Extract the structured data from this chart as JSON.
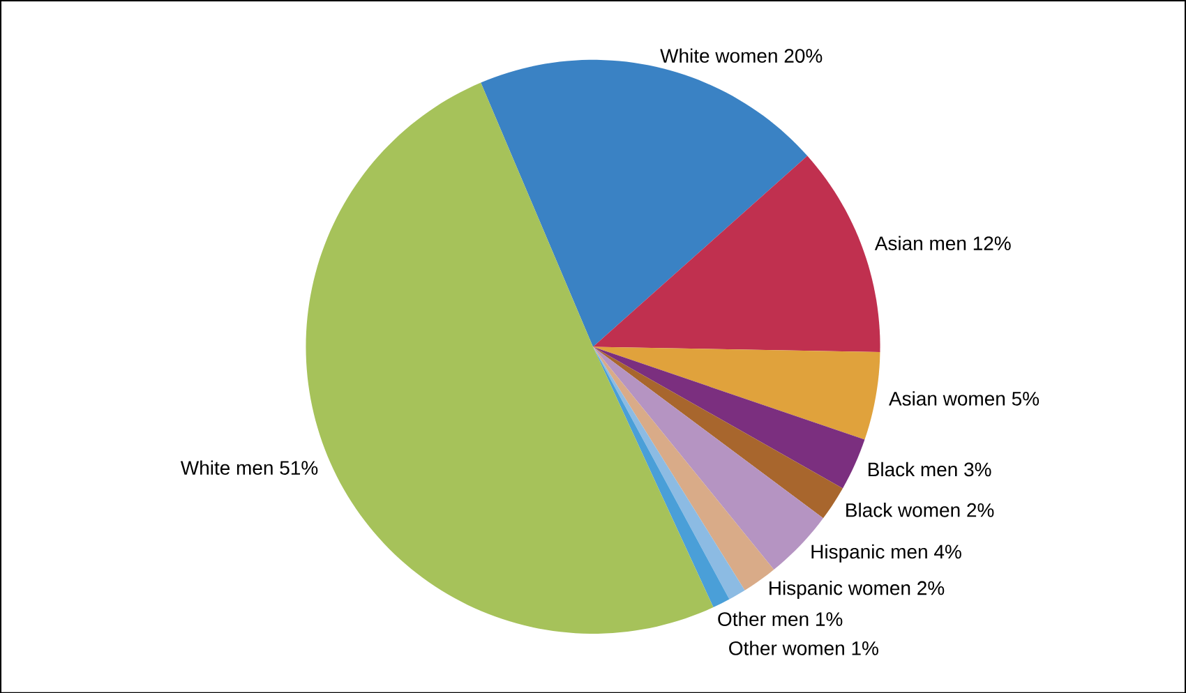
{
  "chart_data": {
    "type": "pie",
    "categories": [
      "White women",
      "Asian men",
      "Asian women",
      "Black men",
      "Black women",
      "Hispanic men",
      "Hispanic women",
      "Other men",
      "Other women",
      "White men"
    ],
    "values": [
      20,
      12,
      5,
      3,
      2,
      4,
      2,
      1,
      1,
      51
    ],
    "colors": [
      "#3a82c4",
      "#c0304f",
      "#e0a23c",
      "#7b2f7f",
      "#a8662d",
      "#b594c2",
      "#d9ab88",
      "#8cbbe3",
      "#4a9fd8",
      "#a6c25a"
    ],
    "value_labels": [
      "20%",
      "12%",
      "5%",
      "3%",
      "2%",
      "4%",
      "2%",
      "1%",
      "1%",
      "51%"
    ]
  }
}
